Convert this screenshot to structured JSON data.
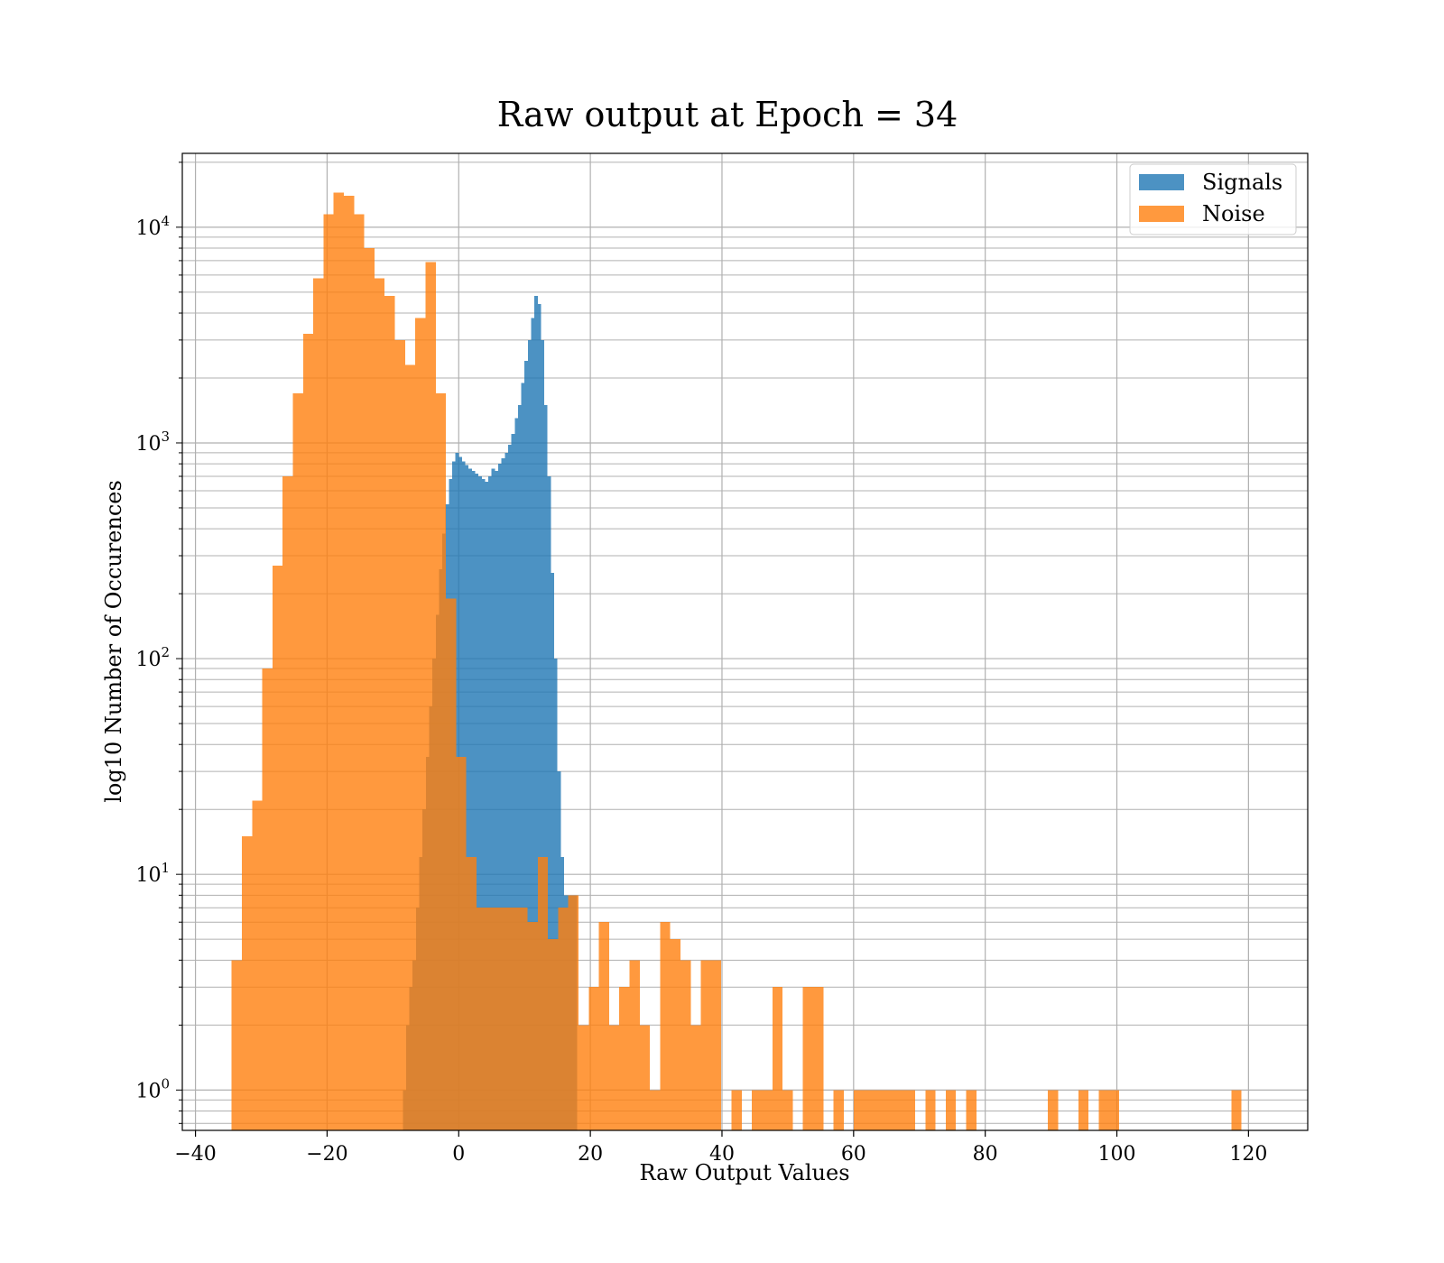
{
  "chart_data": {
    "type": "bar",
    "histogram": true,
    "title": "Raw output at Epoch = 34",
    "xlabel": "Raw Output Values",
    "ylabel": "log10 Number of Occurences",
    "xlim": [
      -42,
      129
    ],
    "ylim": [
      0.65,
      22000
    ],
    "yscale": "log",
    "grid": true,
    "legend_position": "top-right",
    "x_ticks": [
      -40,
      -20,
      0,
      20,
      40,
      60,
      80,
      100,
      120
    ],
    "x_tick_labels": [
      "−40",
      "−20",
      "0",
      "20",
      "40",
      "60",
      "80",
      "100",
      "120"
    ],
    "y_ticks": [
      1,
      10,
      100,
      1000,
      10000
    ],
    "y_tick_labels": [
      {
        "base": "10",
        "exp": "0"
      },
      {
        "base": "10",
        "exp": "1"
      },
      {
        "base": "10",
        "exp": "2"
      },
      {
        "base": "10",
        "exp": "3"
      },
      {
        "base": "10",
        "exp": "4"
      }
    ],
    "series": [
      {
        "name": "Signals",
        "color": "#1f77b4",
        "x_start": -8.5,
        "bin_width": 0.5,
        "counts": [
          1,
          2,
          3,
          4,
          7,
          12,
          20,
          35,
          60,
          100,
          160,
          260,
          380,
          520,
          680,
          820,
          900,
          860,
          820,
          790,
          760,
          740,
          720,
          700,
          680,
          660,
          700,
          760,
          740,
          800,
          850,
          900,
          980,
          1100,
          1300,
          1500,
          1900,
          2400,
          3000,
          3800,
          4800,
          4400,
          3000,
          1500,
          700,
          250,
          100,
          30,
          12,
          8,
          8,
          8,
          8
        ]
      },
      {
        "name": "Noise",
        "color": "#ff7f0e",
        "x_start": -34.5,
        "bin_width": 1.55,
        "counts": [
          4,
          15,
          22,
          90,
          270,
          700,
          1700,
          3200,
          5800,
          11500,
          14500,
          14000,
          11500,
          8000,
          5800,
          4800,
          3000,
          2300,
          3800,
          6900,
          1700,
          190,
          35,
          12,
          7,
          7,
          7,
          7,
          7,
          6,
          12,
          5,
          7,
          8,
          2,
          3,
          6,
          2,
          3,
          4,
          2,
          1,
          6,
          5,
          4,
          2,
          4,
          4,
          0,
          1,
          0,
          1,
          1,
          3,
          1,
          0,
          3,
          3,
          0,
          1,
          0,
          1,
          1,
          1,
          1,
          1,
          1,
          0,
          1,
          0,
          1,
          0,
          1,
          0,
          0,
          0,
          0,
          0,
          0,
          0,
          1,
          0,
          0,
          1,
          0,
          1,
          1,
          0,
          0,
          0,
          0,
          0,
          0,
          0,
          0,
          0,
          0,
          0,
          1
        ]
      }
    ]
  }
}
